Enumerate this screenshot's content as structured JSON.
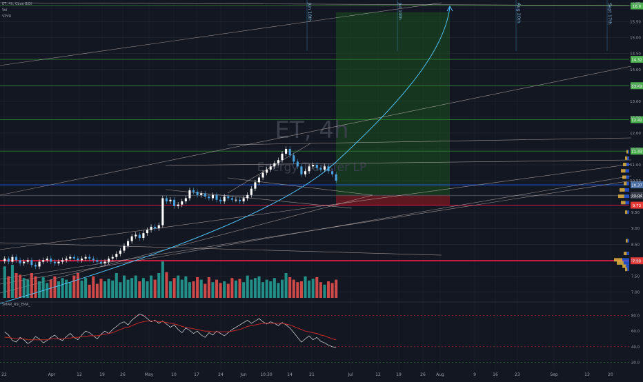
{
  "header": {
    "symbol_line": "ET, 4h, Cboe BZX",
    "volume_label": "Vol",
    "vpvr_label": "VPVR"
  },
  "watermark": {
    "symbol": "ET, 4h",
    "name": "Energy Transfer LP"
  },
  "currency": "USD",
  "colors": {
    "background": "#131722",
    "up": "#ffffff",
    "up_accent": "#4aa3df",
    "down": "#4aa3df",
    "vol_up": "#26a69a",
    "vol_down": "#ef5350",
    "green_level": "#2e7d32",
    "red_level": "#ff1744",
    "curve": "#4fc3f7",
    "trend": "#d7ccc8",
    "rsi": "#e0e0e0",
    "rsi_ema": "#c62828"
  },
  "icons": {
    "curve_arrow": "arrow-up-icon"
  },
  "chart_data": [
    {
      "type": "candlestick",
      "title": "ET, 4h",
      "xlabel": "",
      "ylabel": "",
      "ylim": [
        6.9,
        16.1
      ],
      "x_ticks": [
        "22",
        "Apr",
        "12",
        "19",
        "26",
        "May",
        "10",
        "17",
        "24",
        "Jun",
        "10:30",
        "14",
        "21",
        "Jul",
        "12",
        "19",
        "26",
        "Aug",
        "9",
        "16",
        "23",
        "Sep",
        "13",
        "20"
      ],
      "y_ticks": [
        7.0,
        7.5,
        8.0,
        8.5,
        9.0,
        9.5,
        10.0,
        10.5,
        11.0,
        11.5,
        12.0,
        12.5,
        13.0,
        13.5,
        14.0,
        14.5,
        15.0,
        15.5
      ],
      "price_levels": [
        {
          "label": "16.0",
          "value": 16.0,
          "color": "green"
        },
        {
          "label": "14.32",
          "value": 14.32,
          "color": "green"
        },
        {
          "label": "13.49",
          "value": 13.49,
          "color": "green"
        },
        {
          "label": "12.42",
          "value": 12.42,
          "color": "green"
        },
        {
          "label": "11.43",
          "value": 11.43,
          "color": "green"
        },
        {
          "label": "10.37",
          "value": 10.37,
          "color": "blue"
        },
        {
          "label": "10.04",
          "value": 10.04,
          "color": "grey"
        },
        {
          "label": "9.73",
          "value": 9.73,
          "color": "red"
        },
        {
          "label": "7.98",
          "value": 7.98,
          "color": "red"
        }
      ],
      "vertical_dates": [
        "Jun 18th",
        "Jul 19th",
        "Aug 20th",
        "Sept 17th"
      ],
      "position": {
        "entry": 10.05,
        "stop": 9.73,
        "target": 15.8
      },
      "candles_close": [
        8.05,
        7.95,
        8.1,
        8.0,
        7.9,
        7.95,
        8.0,
        7.85,
        7.8,
        7.95,
        8.0,
        8.05,
        7.95,
        7.9,
        7.95,
        8.0,
        8.05,
        8.1,
        8.05,
        8.0,
        8.05,
        8.1,
        8.05,
        8.0,
        7.95,
        7.9,
        7.95,
        8.05,
        8.1,
        8.2,
        8.3,
        8.45,
        8.6,
        8.75,
        8.8,
        8.7,
        8.85,
        8.95,
        9.05,
        9.0,
        9.1,
        9.95,
        9.85,
        9.9,
        9.7,
        9.75,
        9.85,
        9.95,
        10.2,
        10.15,
        10.05,
        10.1,
        10.0,
        9.95,
        10.05,
        9.9,
        9.85,
        10.0,
        9.95,
        9.9,
        9.9,
        9.85,
        9.95,
        10.05,
        10.25,
        10.45,
        10.6,
        10.75,
        10.85,
        10.95,
        11.05,
        11.15,
        11.35,
        11.5,
        11.3,
        11.1,
        10.95,
        10.7,
        10.8,
        10.95,
        11.0,
        10.9,
        10.85,
        10.95,
        10.8,
        10.7,
        10.5
      ],
      "volume_ylim": [
        0,
        60
      ],
      "volume": [
        38,
        26,
        40,
        30,
        28,
        24,
        22,
        30,
        26,
        20,
        25,
        18,
        22,
        26,
        20,
        24,
        22,
        19,
        27,
        30,
        21,
        24,
        16,
        26,
        17,
        23,
        20,
        23,
        21,
        30,
        19,
        27,
        22,
        24,
        27,
        20,
        24,
        20,
        27,
        22,
        30,
        44,
        31,
        20,
        24,
        27,
        22,
        26,
        19,
        20,
        25,
        22,
        17,
        25,
        19,
        22,
        18,
        20,
        17,
        24,
        21,
        23,
        19,
        27,
        22,
        24,
        26,
        19,
        22,
        20,
        24,
        18,
        22,
        30,
        25,
        22,
        19,
        20,
        26,
        21,
        23,
        25,
        19,
        16,
        20,
        18,
        22
      ]
    },
    {
      "type": "line",
      "title": "SMAR_RSI_EMA_",
      "ylim": [
        16,
        92
      ],
      "y_ticks": [
        20.0,
        40.0,
        60.0,
        80.0
      ],
      "series": [
        {
          "name": "",
          "values": [
            59,
            55,
            48,
            46,
            52,
            49,
            44,
            47,
            53,
            50,
            45,
            48,
            52,
            55,
            50,
            48,
            53,
            57,
            52,
            49,
            55,
            60,
            58,
            54,
            50,
            56,
            60,
            57,
            62,
            66,
            70,
            72,
            68,
            74,
            78,
            82,
            80,
            76,
            72,
            74,
            70,
            73,
            69,
            65,
            68,
            62,
            58,
            64,
            61,
            57,
            60,
            55,
            52,
            58,
            55,
            60,
            57,
            54,
            58,
            62,
            65,
            68,
            71,
            74,
            70,
            73,
            76,
            72,
            69,
            72,
            70,
            67,
            71,
            68,
            64,
            58,
            52,
            46,
            50,
            54,
            49,
            52,
            47,
            45,
            42,
            40,
            39
          ]
        },
        {
          "name": "",
          "values": [
            52,
            52,
            51,
            50,
            50,
            50,
            49,
            49,
            49,
            49,
            49,
            49,
            50,
            50,
            50,
            50,
            51,
            51,
            52,
            52,
            53,
            53,
            54,
            54,
            54,
            55,
            56,
            57,
            58,
            60,
            62,
            64,
            65,
            67,
            69,
            71,
            72,
            73,
            73,
            73,
            72,
            72,
            71,
            70,
            69,
            68,
            66,
            65,
            64,
            63,
            62,
            61,
            60,
            60,
            59,
            59,
            59,
            59,
            59,
            60,
            61,
            62,
            64,
            66,
            67,
            68,
            69,
            70,
            70,
            70,
            70,
            70,
            70,
            69,
            68,
            66,
            64,
            62,
            60,
            59,
            58,
            57,
            55,
            54,
            52,
            50,
            49
          ]
        }
      ]
    }
  ]
}
